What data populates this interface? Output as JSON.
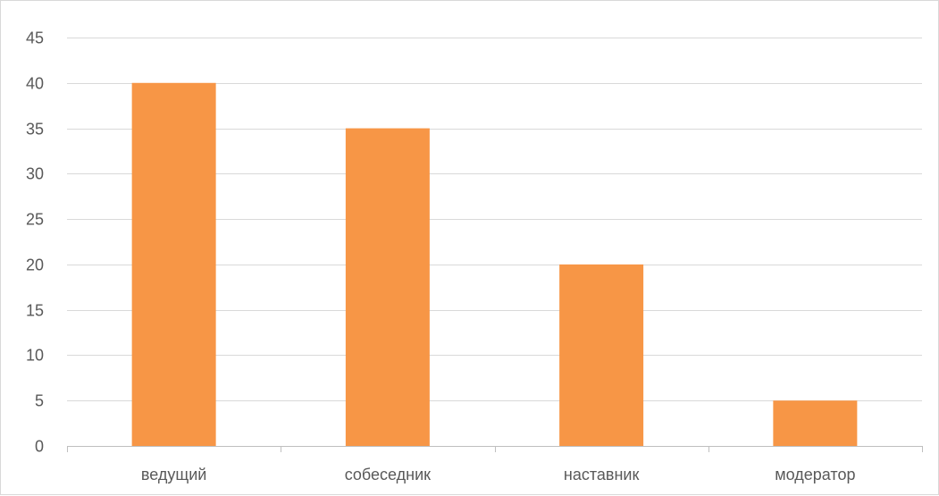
{
  "chart_data": {
    "type": "bar",
    "categories": [
      "ведущий",
      "собеседник",
      "наставник",
      "модератор"
    ],
    "values": [
      40,
      35,
      20,
      5
    ],
    "title": "",
    "xlabel": "",
    "ylabel": "",
    "ylim": [
      0,
      45
    ],
    "yticks": [
      0,
      5,
      10,
      15,
      20,
      25,
      30,
      35,
      40,
      45
    ],
    "grid": true,
    "legend": "none",
    "colors": {
      "bar": "#f79646",
      "grid": "#d9d9d9",
      "axis": "#bfbfbf",
      "text": "#595959"
    }
  }
}
